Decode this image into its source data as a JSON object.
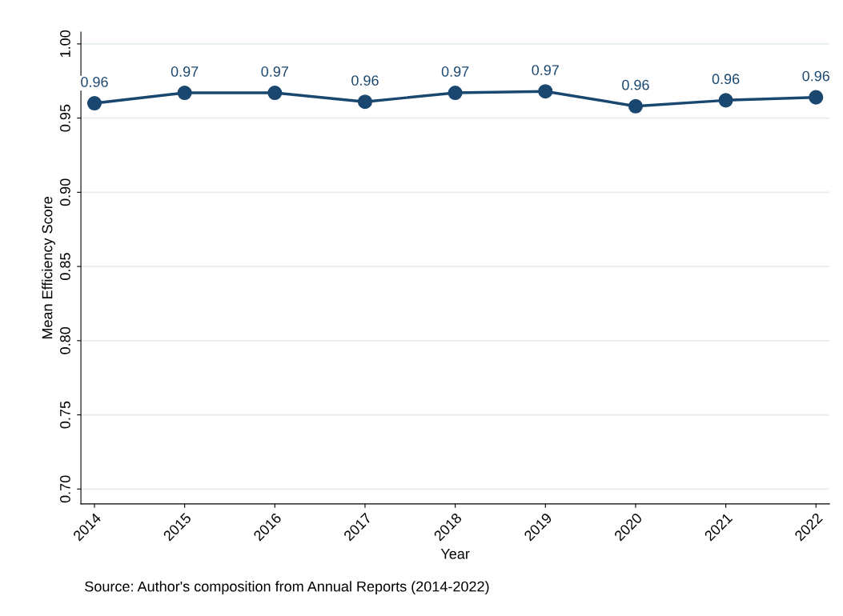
{
  "chart_data": {
    "type": "line",
    "xlabel": "Year",
    "ylabel": "Mean Efficiency Score",
    "categories": [
      "2014",
      "2015",
      "2016",
      "2017",
      "2018",
      "2019",
      "2020",
      "2021",
      "2022"
    ],
    "series": [
      {
        "color": "#1a476f",
        "values": [
          0.96,
          0.967,
          0.967,
          0.961,
          0.967,
          0.968,
          0.958,
          0.962,
          0.964
        ],
        "value_labels": [
          "0.96",
          "0.97",
          "0.97",
          "0.96",
          "0.97",
          "0.97",
          "0.96",
          "0.96",
          "0.96"
        ]
      }
    ],
    "ylim": [
      0.69,
      1.008
    ],
    "yticks": [
      {
        "value": 0.7,
        "label": "0.70"
      },
      {
        "value": 0.75,
        "label": "0.75"
      },
      {
        "value": 0.8,
        "label": "0.80"
      },
      {
        "value": 0.85,
        "label": "0.85"
      },
      {
        "value": 0.9,
        "label": "0.90"
      },
      {
        "value": 0.95,
        "label": "0.95"
      },
      {
        "value": 1.0,
        "label": "1.00"
      }
    ],
    "grid": "y",
    "marker": "circle",
    "line_style": "solid",
    "annotations": [
      "Source: Author's composition from Annual Reports (2014-2022)"
    ]
  }
}
